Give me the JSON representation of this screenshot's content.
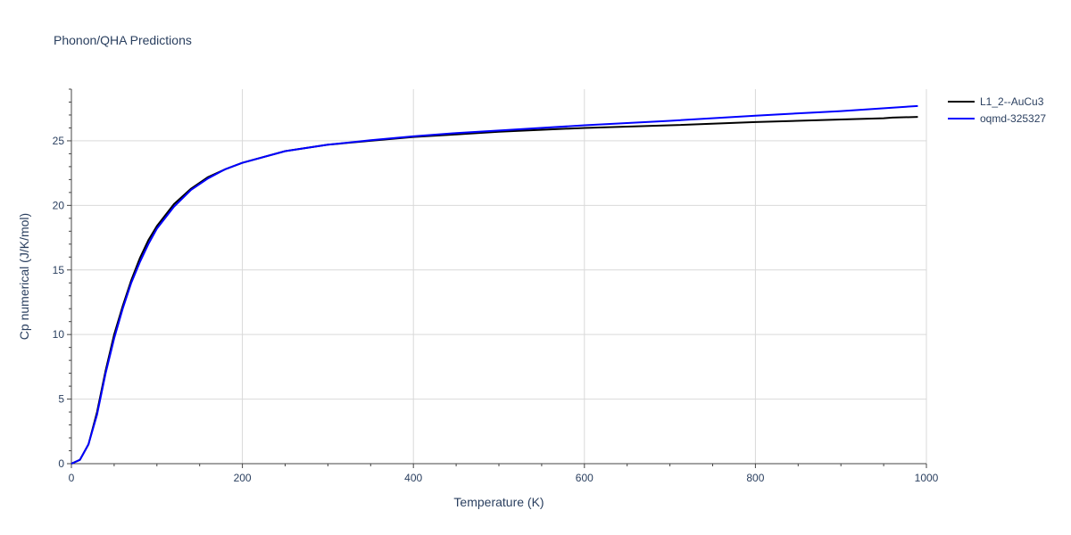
{
  "chart_data": {
    "type": "line",
    "title": "Phonon/QHA Predictions",
    "xlabel": "Temperature (K)",
    "ylabel": "Cp numerical (J/K/mol)",
    "xlim": [
      0,
      1000
    ],
    "ylim": [
      0,
      29
    ],
    "x_ticks": [
      0,
      200,
      400,
      600,
      800,
      1000
    ],
    "y_ticks": [
      0,
      5,
      10,
      15,
      20,
      25
    ],
    "grid": true,
    "legend_position": "top-right",
    "series": [
      {
        "name": "L1_2--AuCu3",
        "color": "#000000",
        "x": [
          0,
          10,
          20,
          30,
          40,
          50,
          60,
          70,
          80,
          90,
          100,
          120,
          140,
          160,
          180,
          200,
          250,
          300,
          350,
          400,
          450,
          500,
          600,
          700,
          800,
          900,
          950,
          960,
          990
        ],
        "y": [
          0,
          0.3,
          1.5,
          4.0,
          7.2,
          10.0,
          12.2,
          14.2,
          15.9,
          17.3,
          18.4,
          20.1,
          21.3,
          22.2,
          22.8,
          23.3,
          24.2,
          24.7,
          25.0,
          25.3,
          25.5,
          25.7,
          26.0,
          26.2,
          26.45,
          26.65,
          26.75,
          26.8,
          26.85
        ]
      },
      {
        "name": "oqmd-325327",
        "color": "#0000ff",
        "x": [
          0,
          10,
          20,
          30,
          40,
          50,
          60,
          70,
          80,
          90,
          100,
          120,
          140,
          160,
          180,
          200,
          250,
          300,
          350,
          400,
          450,
          500,
          600,
          700,
          800,
          900,
          990
        ],
        "y": [
          0,
          0.3,
          1.5,
          3.8,
          7.0,
          9.7,
          12.0,
          14.0,
          15.6,
          17.0,
          18.2,
          19.9,
          21.2,
          22.1,
          22.8,
          23.3,
          24.2,
          24.7,
          25.05,
          25.35,
          25.6,
          25.8,
          26.2,
          26.55,
          26.95,
          27.3,
          27.7
        ]
      }
    ]
  }
}
